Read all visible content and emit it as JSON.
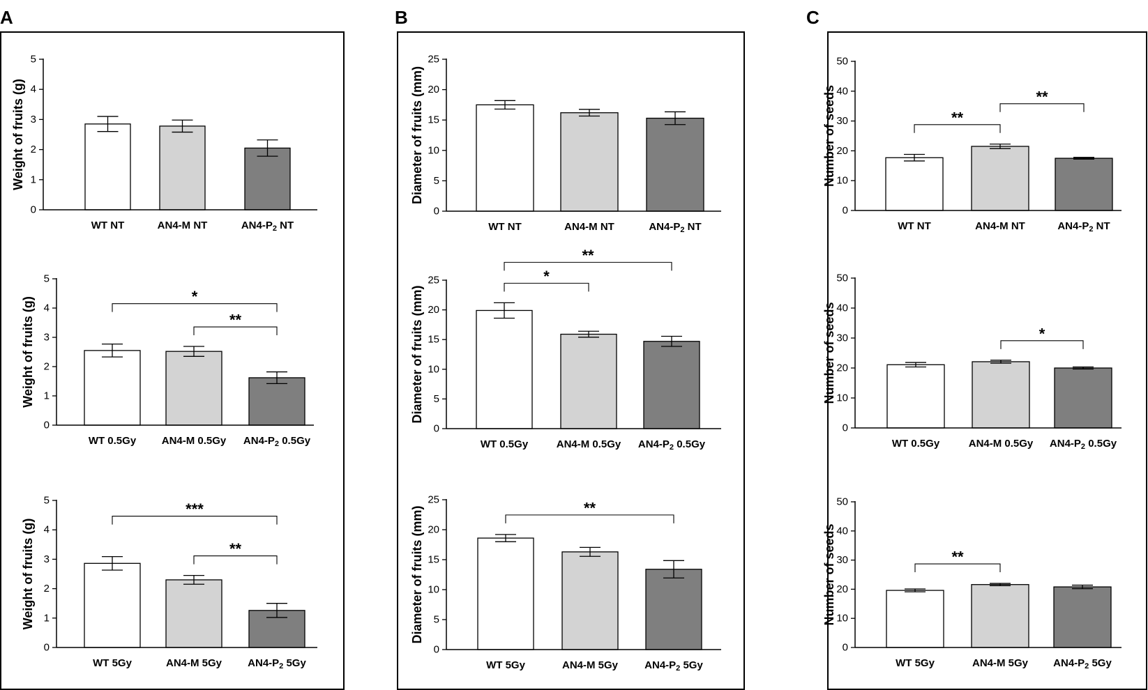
{
  "panels": [
    {
      "label": "A",
      "name": "panel-a"
    },
    {
      "label": "B",
      "name": "panel-b"
    },
    {
      "label": "C",
      "name": "panel-c"
    }
  ],
  "colors": {
    "WT": "#ffffff",
    "AN4-M": "#d3d3d3",
    "AN4-P2": "#7f7f7f",
    "axis": "#000000",
    "frame": "#000000"
  },
  "chart_data": [
    {
      "id": "a-nt",
      "panel": "A",
      "type": "bar",
      "ylabel": "Weight of fruits  (g)",
      "ylim": [
        0,
        5
      ],
      "yticks": [
        0,
        1,
        2,
        3,
        4,
        5
      ],
      "categories": [
        {
          "base": "WT NT"
        },
        {
          "base": "AN4-M NT"
        },
        {
          "base": "AN4-P",
          "sub": "2",
          "tail": " NT"
        }
      ],
      "values": [
        2.85,
        2.78,
        2.05
      ],
      "errors": [
        0.25,
        0.2,
        0.27
      ],
      "significance": []
    },
    {
      "id": "a-05",
      "panel": "A",
      "type": "bar",
      "ylabel": "Weight of fruits  (g)",
      "ylim": [
        0,
        5
      ],
      "yticks": [
        0,
        1,
        2,
        3,
        4,
        5
      ],
      "categories": [
        {
          "base": "WT 0.5Gy"
        },
        {
          "base": "AN4-M 0.5Gy"
        },
        {
          "base": "AN4-P",
          "sub": "2",
          "tail": " 0.5Gy"
        }
      ],
      "values": [
        2.55,
        2.52,
        1.62
      ],
      "errors": [
        0.22,
        0.17,
        0.2
      ],
      "significance": [
        {
          "from": 0,
          "to": 2,
          "label": "*",
          "level": 1
        },
        {
          "from": 1,
          "to": 2,
          "label": "**",
          "level": 0
        }
      ]
    },
    {
      "id": "a-5",
      "panel": "A",
      "type": "bar",
      "ylabel": "Weight of fruits  (g)",
      "ylim": [
        0,
        5
      ],
      "yticks": [
        0,
        1,
        2,
        3,
        4,
        5
      ],
      "categories": [
        {
          "base": "WT 5Gy"
        },
        {
          "base": "AN4-M 5Gy"
        },
        {
          "base": "AN4-P",
          "sub": "2",
          "tail": " 5Gy"
        }
      ],
      "values": [
        2.86,
        2.3,
        1.26
      ],
      "errors": [
        0.23,
        0.15,
        0.24
      ],
      "significance": [
        {
          "from": 0,
          "to": 2,
          "label": "***",
          "level": 1
        },
        {
          "from": 1,
          "to": 2,
          "label": "**",
          "level": 0
        }
      ]
    },
    {
      "id": "b-nt",
      "panel": "B",
      "type": "bar",
      "ylabel": "Diameter of fruits (mm)",
      "ylim": [
        0,
        25
      ],
      "yticks": [
        0,
        5,
        10,
        15,
        20,
        25
      ],
      "categories": [
        {
          "base": "WT NT"
        },
        {
          "base": "AN4-M NT"
        },
        {
          "base": "AN4-P",
          "sub": "2",
          "tail": " NT"
        }
      ],
      "values": [
        17.5,
        16.2,
        15.3
      ],
      "errors": [
        0.7,
        0.55,
        1.05
      ],
      "significance": []
    },
    {
      "id": "b-05",
      "panel": "B",
      "type": "bar",
      "ylabel": "Diameter of fruits (mm)",
      "ylim": [
        0,
        25
      ],
      "yticks": [
        0,
        5,
        10,
        15,
        20,
        25
      ],
      "categories": [
        {
          "base": "WT 0.5Gy"
        },
        {
          "base": "AN4-M 0.5Gy"
        },
        {
          "base": "AN4-P",
          "sub": "2",
          "tail": " 0.5Gy"
        }
      ],
      "values": [
        19.9,
        15.9,
        14.7
      ],
      "errors": [
        1.3,
        0.5,
        0.85
      ],
      "significance": [
        {
          "from": 0,
          "to": 1,
          "label": "*",
          "level": 0
        },
        {
          "from": 0,
          "to": 2,
          "label": "**",
          "level": 1
        }
      ]
    },
    {
      "id": "b-5",
      "panel": "B",
      "type": "bar",
      "ylabel": "Diameter of fruits (mm)",
      "ylim": [
        0,
        25
      ],
      "yticks": [
        0,
        5,
        10,
        15,
        20,
        25
      ],
      "categories": [
        {
          "base": "WT 5Gy"
        },
        {
          "base": "AN4-M 5Gy"
        },
        {
          "base": "AN4-P",
          "sub": "2",
          "tail": " 5Gy"
        }
      ],
      "values": [
        18.6,
        16.3,
        13.4
      ],
      "errors": [
        0.6,
        0.75,
        1.45
      ],
      "significance": [
        {
          "from": 0,
          "to": 2,
          "label": "**",
          "level": 0
        }
      ]
    },
    {
      "id": "c-nt",
      "panel": "C",
      "type": "bar",
      "ylabel": "Number of seeds",
      "ylim": [
        0,
        50
      ],
      "yticks": [
        0,
        10,
        20,
        30,
        40,
        50
      ],
      "categories": [
        {
          "base": "WT NT"
        },
        {
          "base": "AN4-M NT"
        },
        {
          "base": "AN4-P",
          "sub": "2",
          "tail": " NT"
        }
      ],
      "values": [
        17.7,
        21.5,
        17.5
      ],
      "errors": [
        1.1,
        0.75,
        0.3
      ],
      "significance": [
        {
          "from": 0,
          "to": 1,
          "label": "**",
          "level": 0
        },
        {
          "from": 1,
          "to": 2,
          "label": "**",
          "level": 1
        }
      ]
    },
    {
      "id": "c-05",
      "panel": "C",
      "type": "bar",
      "ylabel": "Number of seeds",
      "ylim": [
        0,
        50
      ],
      "yticks": [
        0,
        10,
        20,
        30,
        40,
        50
      ],
      "categories": [
        {
          "base": "WT 0.5Gy"
        },
        {
          "base": "AN4-M 0.5Gy"
        },
        {
          "base": "AN4-P",
          "sub": "2",
          "tail": " 0.5Gy"
        }
      ],
      "values": [
        21.1,
        22.1,
        20.0
      ],
      "errors": [
        0.75,
        0.5,
        0.35
      ],
      "significance": [
        {
          "from": 1,
          "to": 2,
          "label": "*",
          "level": 0
        }
      ]
    },
    {
      "id": "c-5",
      "panel": "C",
      "type": "bar",
      "ylabel": "Number of seeds",
      "ylim": [
        0,
        50
      ],
      "yticks": [
        0,
        10,
        20,
        30,
        40,
        50
      ],
      "categories": [
        {
          "base": "WT 5Gy"
        },
        {
          "base": "AN4-M 5Gy"
        },
        {
          "base": "AN4-P",
          "sub": "2",
          "tail": " 5Gy"
        }
      ],
      "values": [
        19.6,
        21.6,
        20.8
      ],
      "errors": [
        0.5,
        0.4,
        0.6
      ],
      "significance": [
        {
          "from": 0,
          "to": 1,
          "label": "**",
          "level": 0
        }
      ]
    }
  ]
}
